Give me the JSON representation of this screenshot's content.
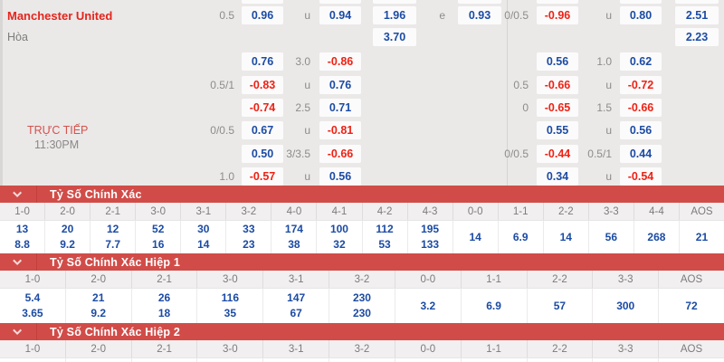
{
  "colors": {
    "panel_bg": "#ebe8e8",
    "cell_bg": "#fcfbfb",
    "odds_blue": "#1b4ba4",
    "odds_red": "#ef2114",
    "label_gray": "#8e8b8b",
    "team_red": "#e4251c",
    "band_red": "#d14c48"
  },
  "top_panel": {
    "home_team": "Manchester United",
    "draw": "Hòa",
    "live": "TRỰC TIẾP",
    "time": "11:30PM",
    "sliver_slots": [
      "Lc1",
      "Lc2",
      "Lc3",
      "Lc4",
      "Rc1",
      "Rc2",
      "Rc3"
    ],
    "odds": [
      {
        "r": 1,
        "s": "Llab",
        "t": "0.5",
        "k": "lab"
      },
      {
        "r": 1,
        "s": "Lc1",
        "t": "0.96",
        "k": "blue"
      },
      {
        "r": 1,
        "s": "Llab2",
        "t": "u",
        "k": "lab"
      },
      {
        "r": 1,
        "s": "Lc2",
        "t": "0.94",
        "k": "blue"
      },
      {
        "r": 1,
        "s": "Lc3",
        "t": "1.96",
        "k": "blue"
      },
      {
        "r": 1,
        "s": "Llab3",
        "t": "e",
        "k": "lab"
      },
      {
        "r": 1,
        "s": "Lc4",
        "t": "0.93",
        "k": "blue"
      },
      {
        "r": 1,
        "s": "Rlab",
        "t": "0/0.5",
        "k": "lab"
      },
      {
        "r": 1,
        "s": "Rc1",
        "t": "-0.96",
        "k": "red"
      },
      {
        "r": 1,
        "s": "Rlab2",
        "t": "u",
        "k": "lab"
      },
      {
        "r": 1,
        "s": "Rc2",
        "t": "0.80",
        "k": "blue"
      },
      {
        "r": 1,
        "s": "Rc3",
        "t": "2.51",
        "k": "blue"
      },
      {
        "r": 2,
        "s": "Lc3",
        "t": "3.70",
        "k": "blue"
      },
      {
        "r": 2,
        "s": "Rc3",
        "t": "2.23",
        "k": "blue"
      },
      {
        "r": 3,
        "s": "Lc1",
        "t": "0.76",
        "k": "blue"
      },
      {
        "r": 3,
        "s": "Llab2",
        "t": "3.0",
        "k": "lab"
      },
      {
        "r": 3,
        "s": "Lc2",
        "t": "-0.86",
        "k": "red"
      },
      {
        "r": 3,
        "s": "Rc1",
        "t": "0.56",
        "k": "blue"
      },
      {
        "r": 3,
        "s": "Rlab2",
        "t": "1.0",
        "k": "lab"
      },
      {
        "r": 3,
        "s": "Rc2",
        "t": "0.62",
        "k": "blue"
      },
      {
        "r": 4,
        "s": "Llab",
        "t": "0.5/1",
        "k": "lab"
      },
      {
        "r": 4,
        "s": "Lc1",
        "t": "-0.83",
        "k": "red"
      },
      {
        "r": 4,
        "s": "Llab2",
        "t": "u",
        "k": "lab"
      },
      {
        "r": 4,
        "s": "Lc2",
        "t": "0.76",
        "k": "blue"
      },
      {
        "r": 4,
        "s": "Rlab",
        "t": "0.5",
        "k": "lab"
      },
      {
        "r": 4,
        "s": "Rc1",
        "t": "-0.66",
        "k": "red"
      },
      {
        "r": 4,
        "s": "Rlab2",
        "t": "u",
        "k": "lab"
      },
      {
        "r": 4,
        "s": "Rc2",
        "t": "-0.72",
        "k": "red"
      },
      {
        "r": 5,
        "s": "Lc1",
        "t": "-0.74",
        "k": "red"
      },
      {
        "r": 5,
        "s": "Llab2",
        "t": "2.5",
        "k": "lab"
      },
      {
        "r": 5,
        "s": "Lc2",
        "t": "0.71",
        "k": "blue"
      },
      {
        "r": 5,
        "s": "Rlab",
        "t": "0",
        "k": "lab"
      },
      {
        "r": 5,
        "s": "Rc1",
        "t": "-0.65",
        "k": "red"
      },
      {
        "r": 5,
        "s": "Rlab2",
        "t": "1.5",
        "k": "lab"
      },
      {
        "r": 5,
        "s": "Rc2",
        "t": "-0.66",
        "k": "red"
      },
      {
        "r": 6,
        "s": "Llab",
        "t": "0/0.5",
        "k": "lab"
      },
      {
        "r": 6,
        "s": "Lc1",
        "t": "0.67",
        "k": "blue"
      },
      {
        "r": 6,
        "s": "Llab2",
        "t": "u",
        "k": "lab"
      },
      {
        "r": 6,
        "s": "Lc2",
        "t": "-0.81",
        "k": "red"
      },
      {
        "r": 6,
        "s": "Rc1",
        "t": "0.55",
        "k": "blue"
      },
      {
        "r": 6,
        "s": "Rlab2",
        "t": "u",
        "k": "lab"
      },
      {
        "r": 6,
        "s": "Rc2",
        "t": "0.56",
        "k": "blue"
      },
      {
        "r": 7,
        "s": "Lc1",
        "t": "0.50",
        "k": "blue"
      },
      {
        "r": 7,
        "s": "Llab2",
        "t": "3/3.5",
        "k": "lab"
      },
      {
        "r": 7,
        "s": "Lc2",
        "t": "-0.66",
        "k": "red"
      },
      {
        "r": 7,
        "s": "Rlab",
        "t": "0/0.5",
        "k": "lab"
      },
      {
        "r": 7,
        "s": "Rc1",
        "t": "-0.44",
        "k": "red"
      },
      {
        "r": 7,
        "s": "Rlab2",
        "t": "0.5/1",
        "k": "lab"
      },
      {
        "r": 7,
        "s": "Rc2",
        "t": "0.44",
        "k": "blue"
      },
      {
        "r": 8,
        "s": "Llab",
        "t": "1.0",
        "k": "lab"
      },
      {
        "r": 8,
        "s": "Lc1",
        "t": "-0.57",
        "k": "red"
      },
      {
        "r": 8,
        "s": "Llab2",
        "t": "u",
        "k": "lab"
      },
      {
        "r": 8,
        "s": "Lc2",
        "t": "0.56",
        "k": "blue"
      },
      {
        "r": 8,
        "s": "Rc1",
        "t": "0.34",
        "k": "blue"
      },
      {
        "r": 8,
        "s": "Rlab2",
        "t": "u",
        "k": "lab"
      },
      {
        "r": 8,
        "s": "Rc2",
        "t": "-0.54",
        "k": "red"
      }
    ]
  },
  "sections": [
    {
      "title": "Tỷ Số Chính Xác",
      "headers": [
        "1-0",
        "2-0",
        "2-1",
        "3-0",
        "3-1",
        "3-2",
        "4-0",
        "4-1",
        "4-2",
        "4-3",
        "0-0",
        "1-1",
        "2-2",
        "3-3",
        "4-4",
        "AOS"
      ],
      "top": [
        "13",
        "20",
        "12",
        "52",
        "30",
        "33",
        "174",
        "100",
        "112",
        "195",
        "14",
        "6.9",
        "14",
        "56",
        "268",
        "21"
      ],
      "bottom": [
        "8.8",
        "9.2",
        "7.7",
        "16",
        "14",
        "23",
        "38",
        "32",
        "53",
        "133",
        "",
        "",
        "",
        "",
        "",
        ""
      ],
      "values_height": 36
    },
    {
      "title": "Tỷ Số Chính Xác Hiệp 1",
      "headers": [
        "1-0",
        "2-0",
        "2-1",
        "3-0",
        "3-1",
        "3-2",
        "0-0",
        "1-1",
        "2-2",
        "3-3",
        "AOS"
      ],
      "top": [
        "5.4",
        "21",
        "26",
        "116",
        "147",
        "230",
        "3.2",
        "6.9",
        "57",
        "300",
        "72"
      ],
      "bottom": [
        "3.65",
        "9.2",
        "18",
        "35",
        "67",
        "230",
        "",
        "",
        "",
        "",
        ""
      ],
      "values_height": 38
    },
    {
      "title": "Tỷ Số Chính Xác Hiệp 2",
      "headers": [
        "1-0",
        "2-0",
        "2-1",
        "3-0",
        "3-1",
        "3-2",
        "0-0",
        "1-1",
        "2-2",
        "3-3",
        "AOS"
      ],
      "top": [],
      "bottom": [],
      "values_height": 4
    }
  ]
}
